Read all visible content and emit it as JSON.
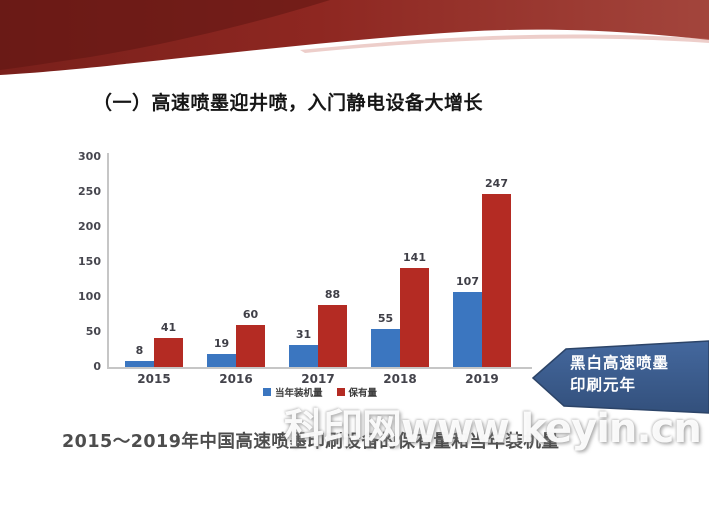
{
  "slide": {
    "title": "（一）高速喷墨迎井喷，入门静电设备大增长",
    "caption": "2015～2019年中国高速喷墨印刷设备的保有量和当年装机量",
    "watermark": "科印网www.keyin.cn",
    "callout": {
      "line1": "黑白高速喷墨",
      "line2": "印刷元年",
      "color": "#3d5f92"
    }
  },
  "chart_data": {
    "type": "bar",
    "categories": [
      "2015",
      "2016",
      "2017",
      "2018",
      "2019"
    ],
    "series": [
      {
        "name": "当年装机量",
        "color": "#3b76c0",
        "values": [
          8,
          19,
          31,
          55,
          107
        ]
      },
      {
        "name": "保有量",
        "color": "#b42b23",
        "values": [
          41,
          60,
          88,
          141,
          247
        ]
      }
    ],
    "title": "",
    "xlabel": "",
    "ylabel": "",
    "ylim": [
      0,
      300
    ],
    "yticks": [
      0,
      50,
      100,
      150,
      200,
      250,
      300
    ],
    "grid": false,
    "legend_position": "bottom"
  },
  "colors": {
    "ribbon_dark": "#6b1b17",
    "ribbon_mid": "#8e2721",
    "ribbon_light": "#a3453c",
    "ribbon_highlight": "#d8928a",
    "axis": "#c6c6c6",
    "label": "#43434b",
    "callout_top": "#44689e",
    "callout_bottom": "#33507c"
  }
}
